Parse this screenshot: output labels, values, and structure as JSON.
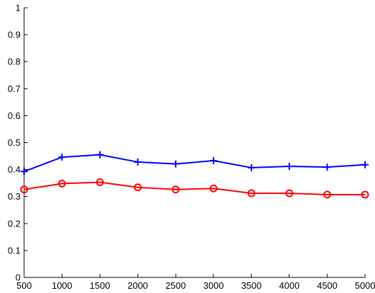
{
  "chart_data": {
    "type": "line",
    "title": "",
    "xlabel": "",
    "ylabel": "",
    "x": [
      500,
      1000,
      1500,
      2000,
      2500,
      3000,
      3500,
      4000,
      4500,
      5000
    ],
    "xlim": [
      500,
      5000
    ],
    "ylim": [
      0,
      1
    ],
    "x_ticks": [
      500,
      1000,
      1500,
      2000,
      2500,
      3000,
      3500,
      4000,
      4500,
      5000
    ],
    "y_ticks": [
      0,
      0.1,
      0.2,
      0.3,
      0.4,
      0.5,
      0.6,
      0.7,
      0.8,
      0.9,
      1
    ],
    "x_tick_labels": [
      "500",
      "1000",
      "1500",
      "2000",
      "2500",
      "3000",
      "3500",
      "4000",
      "4500",
      "5000"
    ],
    "y_tick_labels": [
      "0",
      "0.1",
      "0.2",
      "0.3",
      "0.4",
      "0.5",
      "0.6",
      "0.7",
      "0.8",
      "0.9",
      "1"
    ],
    "grid": false,
    "legend": null,
    "series": [
      {
        "color": "#0000ff",
        "marker": "plus",
        "values": [
          0.393,
          0.446,
          0.455,
          0.428,
          0.421,
          0.433,
          0.407,
          0.412,
          0.409,
          0.418
        ]
      },
      {
        "color": "#ff0000",
        "marker": "circle",
        "values": [
          0.326,
          0.348,
          0.353,
          0.334,
          0.326,
          0.33,
          0.312,
          0.312,
          0.307,
          0.307
        ]
      }
    ]
  }
}
